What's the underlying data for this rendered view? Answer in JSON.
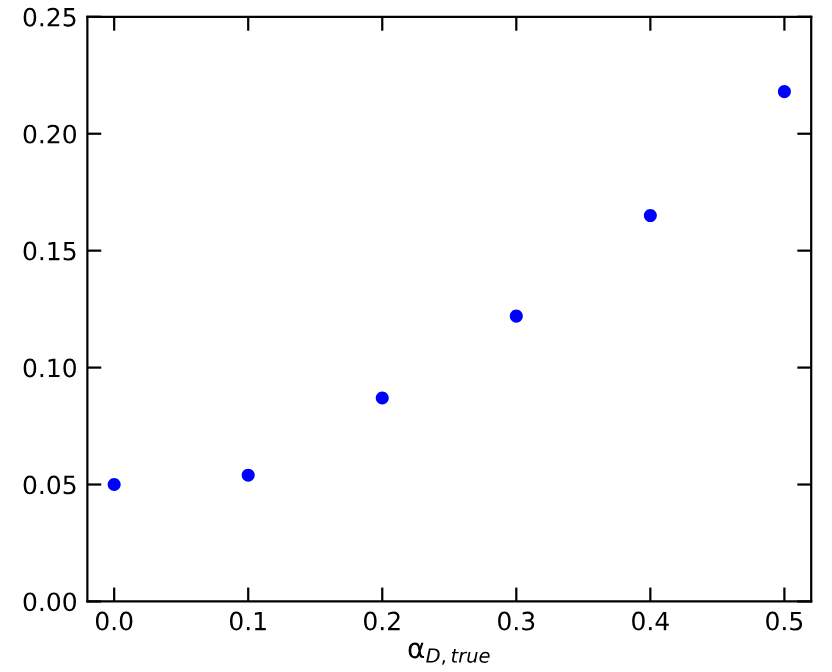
{
  "chart_data": {
    "type": "scatter",
    "xlabel": "α$_{D,true}$",
    "x": [
      0.0,
      0.1,
      0.2,
      0.3,
      0.4,
      0.5
    ],
    "series": [
      {
        "color": "#0000ff",
        "values": [
          0.05,
          0.054,
          0.087,
          0.122,
          0.165,
          0.218
        ]
      }
    ],
    "xlim": [
      -0.02,
      0.52
    ],
    "ylim": [
      0.0,
      0.25
    ],
    "xticks": [
      {
        "value": 0.0,
        "label": "0.0"
      },
      0.1,
      0.2,
      0.3,
      0.4,
      0.5
    ],
    "yticks": [
      {
        "value": 0.0,
        "label": "0.00"
      },
      0.05,
      {
        "value": 0.1,
        "label": "0.10"
      },
      0.15,
      {
        "value": 0.2,
        "label": "0.20"
      },
      0.25
    ],
    "marker": "circle",
    "grid": false
  }
}
